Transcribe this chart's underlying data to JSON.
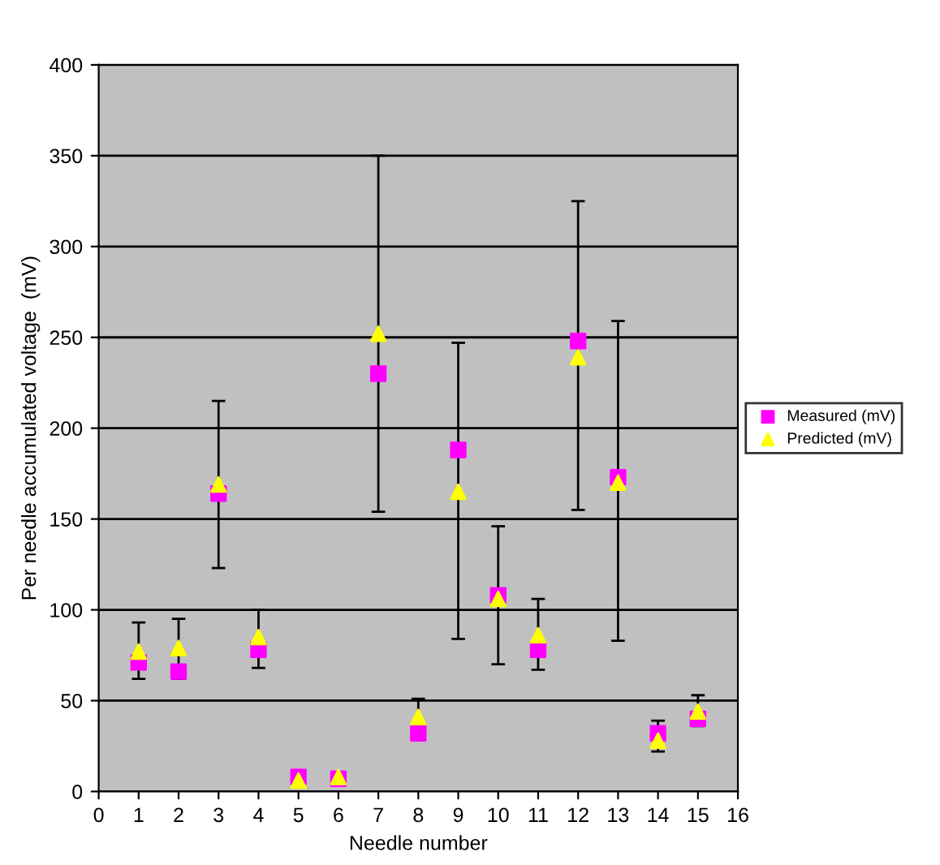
{
  "chart_data": {
    "type": "scatter",
    "xlabel": "Needle number",
    "ylabel": "Per needle accumulated voltage  (mV)",
    "x": [
      1,
      2,
      3,
      4,
      5,
      6,
      7,
      8,
      9,
      10,
      11,
      12,
      13,
      14,
      15
    ],
    "series": [
      {
        "name": "Measured (mV)",
        "color": "#ff00ff",
        "marker": "square",
        "values": [
          71,
          66,
          164,
          78,
          8,
          7,
          230,
          32,
          188,
          108,
          78,
          248,
          173,
          32,
          40
        ],
        "errors": [
          [
            62,
            93
          ],
          [
            62,
            95
          ],
          [
            123,
            215
          ],
          [
            68,
            100
          ],
          null,
          null,
          [
            154,
            350
          ],
          [
            30,
            51
          ],
          [
            84,
            247
          ],
          [
            70,
            146
          ],
          [
            67,
            106
          ],
          [
            155,
            325
          ],
          [
            83,
            259
          ],
          [
            22,
            39
          ],
          [
            36,
            53
          ]
        ]
      },
      {
        "name": "Predicted (mV)",
        "color": "#ffff00",
        "marker": "triangle",
        "values": [
          77,
          79,
          169,
          85,
          6,
          8,
          252,
          41,
          165,
          106,
          86,
          239,
          170,
          28,
          44
        ]
      }
    ],
    "xlim": [
      0,
      16
    ],
    "xticks": [
      0,
      1,
      2,
      3,
      4,
      5,
      6,
      7,
      8,
      9,
      10,
      11,
      12,
      13,
      14,
      15,
      16
    ],
    "ylim": [
      0,
      400
    ],
    "yticks": [
      0,
      50,
      100,
      150,
      200,
      250,
      300,
      350,
      400
    ],
    "grid": "y",
    "legend": "right"
  }
}
